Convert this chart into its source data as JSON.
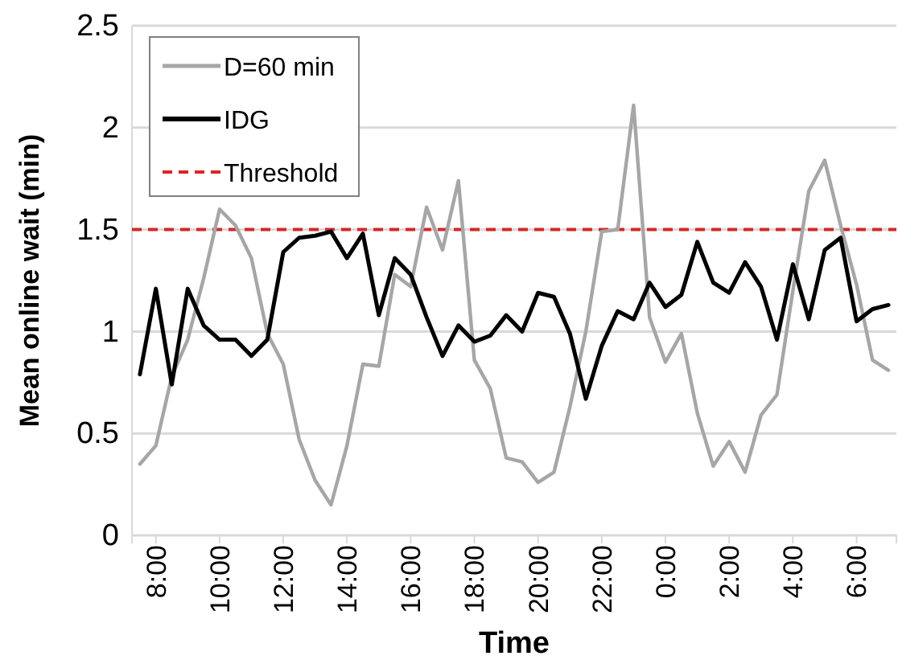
{
  "chart_data": {
    "type": "line",
    "xlabel": "Time",
    "ylabel": "Mean online wait (min)",
    "categories": [
      null,
      "8:00",
      null,
      null,
      null,
      "10:00",
      null,
      null,
      null,
      "12:00",
      null,
      null,
      null,
      "14:00",
      null,
      null,
      null,
      "16:00",
      null,
      null,
      null,
      "18:00",
      null,
      null,
      null,
      "20:00",
      null,
      null,
      null,
      "22:00",
      null,
      null,
      null,
      "0:00",
      null,
      null,
      null,
      "2:00",
      null,
      null,
      null,
      "4:00",
      null,
      null,
      null,
      "6:00",
      null,
      null
    ],
    "series": [
      {
        "name": "D=60 min",
        "color": "#a6a6a6",
        "values": [
          0.35,
          0.44,
          0.78,
          0.96,
          1.26,
          1.6,
          1.52,
          1.36,
          0.99,
          0.84,
          0.47,
          0.27,
          0.15,
          0.44,
          0.84,
          0.83,
          1.28,
          1.22,
          1.61,
          1.4,
          1.74,
          0.86,
          0.72,
          0.38,
          0.36,
          0.26,
          0.31,
          0.63,
          1.0,
          1.49,
          1.5,
          2.11,
          1.07,
          0.85,
          0.99,
          0.6,
          0.34,
          0.46,
          0.31,
          0.59,
          0.69,
          1.2,
          1.69,
          1.84,
          1.52,
          1.23,
          0.86,
          0.81
        ]
      },
      {
        "name": "IDG",
        "color": "#000000",
        "values": [
          0.79,
          1.21,
          0.74,
          1.21,
          1.03,
          0.96,
          0.96,
          0.88,
          0.96,
          1.39,
          1.46,
          1.47,
          1.49,
          1.36,
          1.48,
          1.08,
          1.36,
          1.28,
          1.07,
          0.88,
          1.03,
          0.95,
          0.98,
          1.08,
          1.0,
          1.19,
          1.17,
          0.99,
          0.67,
          0.93,
          1.1,
          1.06,
          1.24,
          1.12,
          1.18,
          1.44,
          1.24,
          1.19,
          1.34,
          1.22,
          0.96,
          1.33,
          1.06,
          1.4,
          1.46,
          1.05,
          1.11,
          1.13
        ]
      }
    ],
    "ref_lines": [
      {
        "axis": "y",
        "value": 1.5,
        "label": "Threshold",
        "color": "#d62728",
        "line_style": "dashed"
      }
    ],
    "ylim": [
      0,
      2.5
    ],
    "yticks": [
      0,
      0.5,
      1,
      1.5,
      2,
      2.5
    ],
    "grid": "y",
    "legend": "top left",
    "marker": "none",
    "line_style": "solid"
  }
}
